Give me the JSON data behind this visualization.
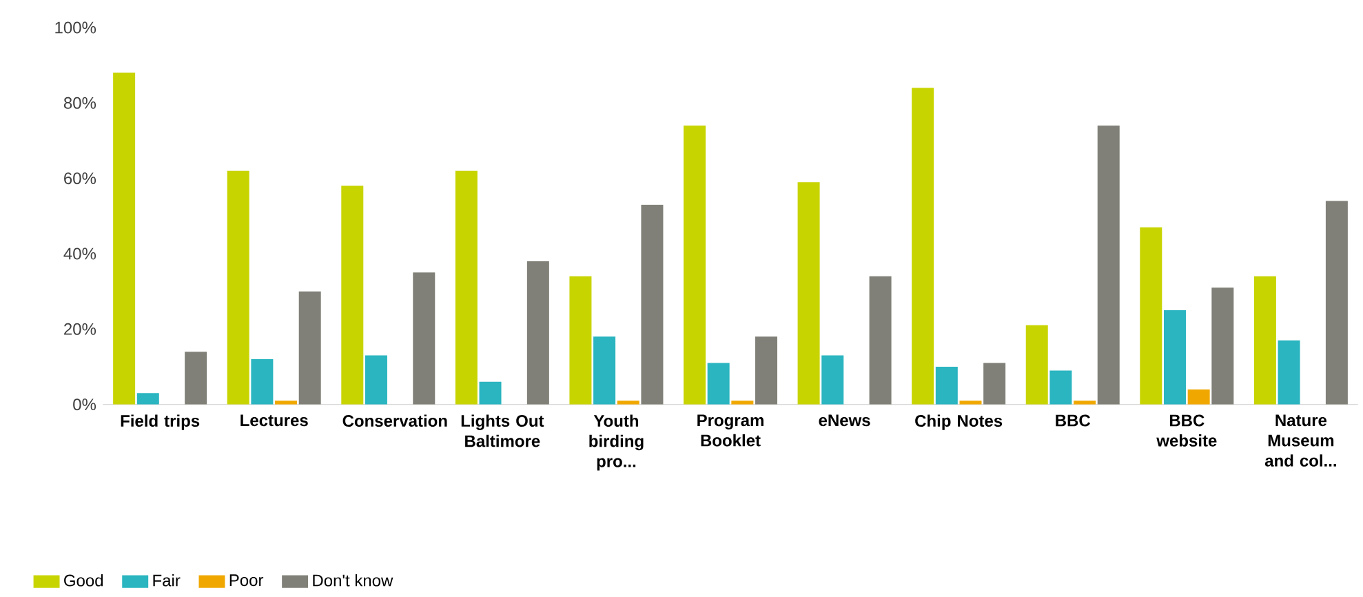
{
  "chart_data": {
    "type": "bar",
    "categories": [
      "Field trips",
      "Lectures",
      "Conservation",
      "Lights Out Baltimore",
      "Youth birding pro...",
      "Program Booklet",
      "eNews",
      "Chip Notes",
      "BBC",
      "BBC website",
      "Nature Museum and col..."
    ],
    "series": [
      {
        "name": "Good",
        "color": "#c8d400",
        "values": [
          88,
          62,
          58,
          62,
          34,
          74,
          59,
          84,
          21,
          47,
          34
        ]
      },
      {
        "name": "Fair",
        "color": "#2ab5c0",
        "values": [
          3,
          12,
          13,
          6,
          18,
          11,
          13,
          10,
          9,
          25,
          17
        ]
      },
      {
        "name": "Poor",
        "color": "#f0a800",
        "values": [
          0,
          1,
          0,
          0,
          1,
          1,
          0,
          1,
          1,
          4,
          0
        ]
      },
      {
        "name": "Don't know",
        "color": "#808078",
        "values": [
          14,
          30,
          35,
          38,
          53,
          18,
          34,
          11,
          74,
          31,
          54
        ]
      }
    ],
    "ylim": [
      0,
      100
    ],
    "yticks": [
      {
        "value": 0,
        "label": "0%"
      },
      {
        "value": 20,
        "label": "20%"
      },
      {
        "value": 40,
        "label": "40%"
      },
      {
        "value": 60,
        "label": "60%"
      },
      {
        "value": 80,
        "label": "80%"
      },
      {
        "value": 100,
        "label": "100%"
      }
    ],
    "legend": "bottom left"
  }
}
